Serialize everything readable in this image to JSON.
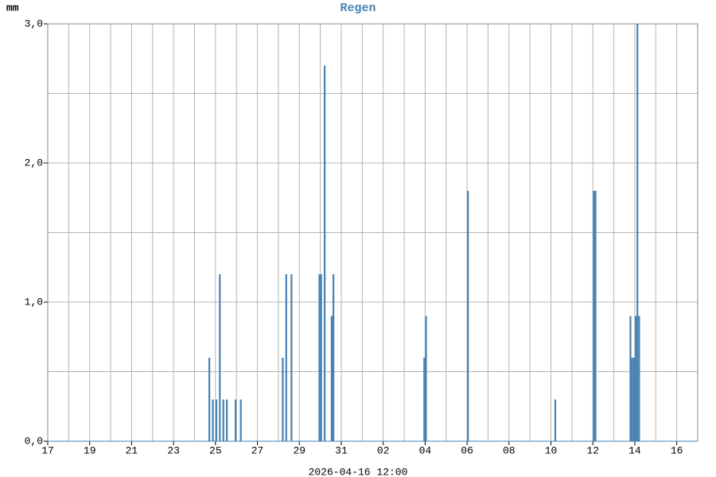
{
  "chart_data": {
    "type": "bar",
    "title": "Regen",
    "ylabel": "mm",
    "xlabel": "2026-04-16 12:00",
    "color": "#4682b4",
    "bar_hours": 2,
    "grid": true,
    "x": [
      "2026-03-24 16:00",
      "2026-03-24 20:00",
      "2026-03-25 00:00",
      "2026-03-25 04:00",
      "2026-03-25 08:00",
      "2026-03-25 12:00",
      "2026-03-25 22:00",
      "2026-03-26 04:00",
      "2026-03-28 04:00",
      "2026-03-28 08:00",
      "2026-03-28 14:00",
      "2026-03-29 22:00",
      "2026-03-30 00:00",
      "2026-03-30 04:00",
      "2026-03-30 12:00",
      "2026-03-30 14:00",
      "2026-04-03 22:00",
      "2026-04-04 00:00",
      "2026-04-06 00:00",
      "2026-04-10 04:00",
      "2026-04-12 00:00",
      "2026-04-12 02:00",
      "2026-04-13 18:00",
      "2026-04-13 20:00",
      "2026-04-13 22:00",
      "2026-04-14 00:00",
      "2026-04-14 02:00",
      "2026-04-14 04:00"
    ],
    "values": [
      0.6,
      0.3,
      0.3,
      1.2,
      0.3,
      0.3,
      0.3,
      0.3,
      0.6,
      1.2,
      1.2,
      1.2,
      1.2,
      2.7,
      0.9,
      1.2,
      0.6,
      0.9,
      1.8,
      0.3,
      1.8,
      1.8,
      0.9,
      0.6,
      0.6,
      0.9,
      3.0,
      0.9
    ],
    "xlim": [
      "2026-03-17 00:00",
      "2026-04-17 00:00"
    ],
    "xticks": [
      {
        "value": "2026-03-17 00:00",
        "label": "17"
      },
      {
        "value": "2026-03-19 00:00",
        "label": "19"
      },
      {
        "value": "2026-03-21 00:00",
        "label": "21"
      },
      {
        "value": "2026-03-23 00:00",
        "label": "23"
      },
      {
        "value": "2026-03-25 00:00",
        "label": "25"
      },
      {
        "value": "2026-03-27 00:00",
        "label": "27"
      },
      {
        "value": "2026-03-29 00:00",
        "label": "29"
      },
      {
        "value": "2026-03-31 00:00",
        "label": "31"
      },
      {
        "value": "2026-04-02 00:00",
        "label": "02"
      },
      {
        "value": "2026-04-04 00:00",
        "label": "04"
      },
      {
        "value": "2026-04-06 00:00",
        "label": "06"
      },
      {
        "value": "2026-04-08 00:00",
        "label": "08"
      },
      {
        "value": "2026-04-10 00:00",
        "label": "10"
      },
      {
        "value": "2026-04-12 00:00",
        "label": "12"
      },
      {
        "value": "2026-04-14 00:00",
        "label": "14"
      },
      {
        "value": "2026-04-16 00:00",
        "label": "16"
      }
    ],
    "ylim": [
      0,
      3
    ],
    "yticks": [
      {
        "value": 0,
        "label": "0,0"
      },
      {
        "value": 1,
        "label": "1,0"
      },
      {
        "value": 2,
        "label": "2,0"
      },
      {
        "value": 3,
        "label": "3,0"
      }
    ],
    "yminor": [
      0.5,
      1.5,
      2.5
    ]
  }
}
